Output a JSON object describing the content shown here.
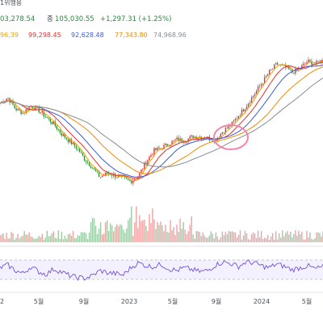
{
  "chart_data": {
    "type": "line",
    "header": {
      "ohlc_line_left": "03,278.54",
      "ohlc_close_label": "종",
      "ohlc_close_value": "105,030.55",
      "ohlc_change": "+1,297.31 (+1.25%)",
      "top_right_fragment": "1위행용",
      "ma_values": [
        "96,39",
        "99,298.45",
        "92,628.48",
        "77,343.80",
        "74,968.96"
      ]
    },
    "colors": {
      "up": "#e03131",
      "down": "#2b8a3e",
      "ma_short": "#f59f00",
      "ma_mid": "#e03131",
      "ma_long1": "#3b5bdb",
      "ma_long2": "#f08c00",
      "ma_long3": "#868e96",
      "rsi_line": "#6741d9",
      "rsi_fill": "#e5dbff",
      "highlight": "#f783ac"
    },
    "x_axis": {
      "ticks": [
        "2",
        "5월",
        "9월",
        "2023",
        "5월",
        "9월",
        "2024",
        "5월"
      ]
    },
    "price": {
      "note": "normalized 0-1 price level over time",
      "values": [
        0.62,
        0.66,
        0.58,
        0.55,
        0.6,
        0.57,
        0.52,
        0.47,
        0.4,
        0.35,
        0.3,
        0.22,
        0.16,
        0.09,
        0.12,
        0.1,
        0.08,
        0.06,
        0.1,
        0.2,
        0.28,
        0.3,
        0.33,
        0.36,
        0.35,
        0.38,
        0.38,
        0.37,
        0.36,
        0.42,
        0.46,
        0.53,
        0.6,
        0.68,
        0.76,
        0.84,
        0.9,
        0.88,
        0.84,
        0.87,
        0.92,
        0.9,
        0.93
      ]
    },
    "rsi": {
      "upper": 70,
      "lower": 30,
      "values": [
        55,
        62,
        48,
        40,
        58,
        45,
        38,
        52,
        44,
        35,
        30,
        28,
        34,
        48,
        42,
        40,
        36,
        55,
        68,
        60,
        58,
        64,
        52,
        48,
        55,
        50,
        45,
        48,
        62,
        70,
        66,
        58,
        70,
        68,
        60,
        55,
        65,
        58,
        50,
        55,
        60,
        52,
        58
      ]
    }
  }
}
